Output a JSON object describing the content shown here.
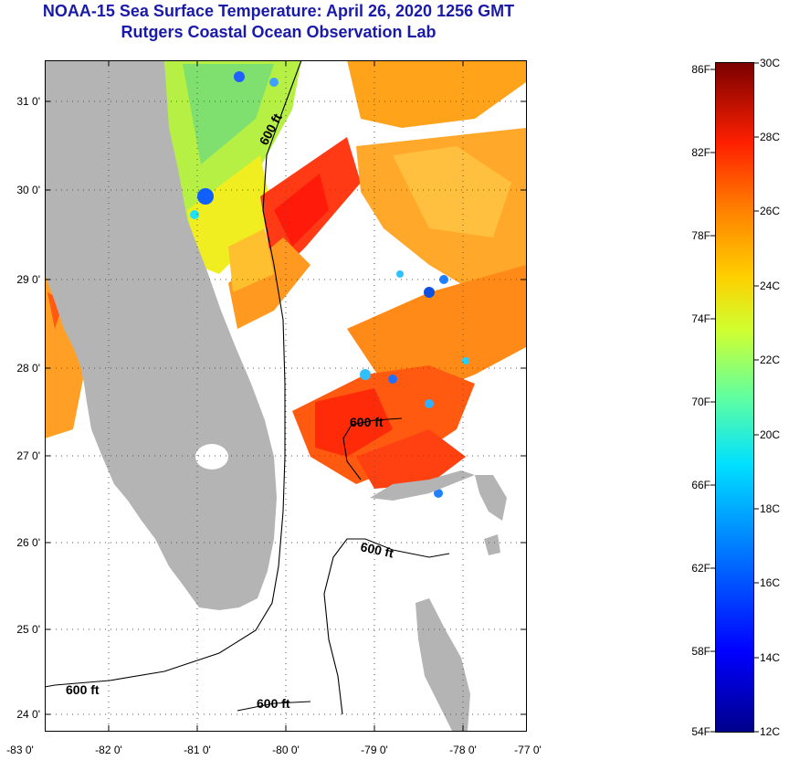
{
  "title": "NOAA-15 Sea Surface Temperature:  April 26, 2020 1256 GMT",
  "subtitle": "Rutgers Coastal Ocean Observation Lab",
  "map": {
    "lat_ticks": [
      "31 0'",
      "30 0'",
      "29 0'",
      "28 0'",
      "27 0'",
      "26 0'",
      "25 0'",
      "24 0'"
    ],
    "lon_ticks": [
      "-83 0'",
      "-82 0'",
      "-81 0'",
      "-80 0'",
      "-79 0'",
      "-78 0'",
      "-77 0'"
    ],
    "contour_labels": [
      "600 ft",
      "600 ft",
      "600 ft",
      "600 ft",
      "600 ft"
    ],
    "land_color": "#b4b4b4",
    "grid": "dotted"
  },
  "colorbar": {
    "f_labels": [
      "86F",
      "82F",
      "78F",
      "74F",
      "70F",
      "66F",
      "62F",
      "58F",
      "54F"
    ],
    "c_labels": [
      "30C",
      "28C",
      "26C",
      "24C",
      "22C",
      "20C",
      "18C",
      "16C",
      "14C",
      "12C"
    ],
    "min_c": 12,
    "max_c": 30,
    "min_f": 54,
    "max_f": 86,
    "colors": [
      "#000080",
      "#0000ff",
      "#0080ff",
      "#00ffff",
      "#80ff80",
      "#ffff00",
      "#ff8000",
      "#ff0000",
      "#800000"
    ]
  }
}
